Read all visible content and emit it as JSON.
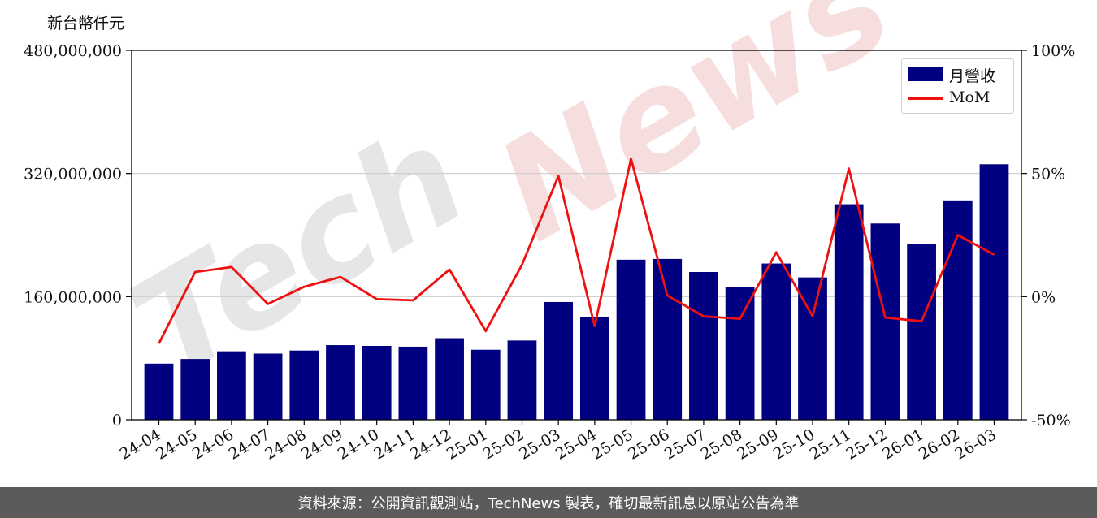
{
  "unit_label": "新台幣仟元",
  "footer_text": "資料來源：公開資訊觀測站，TechNews 製表，確切最新訊息以原站公告為準",
  "watermark_text": "TechNews",
  "colors": {
    "bar": "#000080",
    "line": "#ee1111",
    "grid": "#cccccc",
    "watermark_dark": "#e6e6e6",
    "watermark_red": "#f7dede"
  },
  "chart_data": {
    "type": "bar",
    "categories": [
      "24-04",
      "24-05",
      "24-06",
      "24-07",
      "24-08",
      "24-09",
      "24-10",
      "24-11",
      "24-12",
      "25-01",
      "25-02",
      "25-03",
      "25-04",
      "25-05",
      "25-06",
      "25-07",
      "25-08",
      "25-09",
      "25-10",
      "25-11",
      "25-12",
      "26-01",
      "26-02",
      "26-03"
    ],
    "series": [
      {
        "name": "月營收",
        "kind": "bar",
        "axis": "left",
        "values": [
          73000000,
          79000000,
          89000000,
          86000000,
          90000000,
          97000000,
          96000000,
          95000000,
          106000000,
          91000000,
          103000000,
          153000000,
          134000000,
          208000000,
          209000000,
          192000000,
          172000000,
          203000000,
          185000000,
          280000000,
          255000000,
          228000000,
          285000000,
          332000000
        ]
      },
      {
        "name": "MoM",
        "kind": "line",
        "axis": "right",
        "values": [
          -19,
          10,
          12,
          -3,
          4,
          8,
          -1,
          -1.5,
          11,
          -14,
          13,
          49,
          -12,
          56,
          0.5,
          -8,
          -9,
          18,
          -8,
          52,
          -8.5,
          -10,
          25,
          17
        ]
      }
    ],
    "y_left": {
      "min": 0,
      "max": 480000000,
      "ticks": [
        "0",
        "160,000,000",
        "320,000,000",
        "480,000,000"
      ],
      "tick_values": [
        0,
        160000000,
        320000000,
        480000000
      ]
    },
    "y_right": {
      "min": -50,
      "max": 100,
      "ticks": [
        "-50%",
        "0%",
        "50%",
        "100%"
      ],
      "tick_values": [
        -50,
        0,
        50,
        100
      ]
    },
    "grid": "horizontal",
    "legend": {
      "position": "top-right",
      "entries": [
        "月營收",
        "MoM"
      ]
    }
  }
}
